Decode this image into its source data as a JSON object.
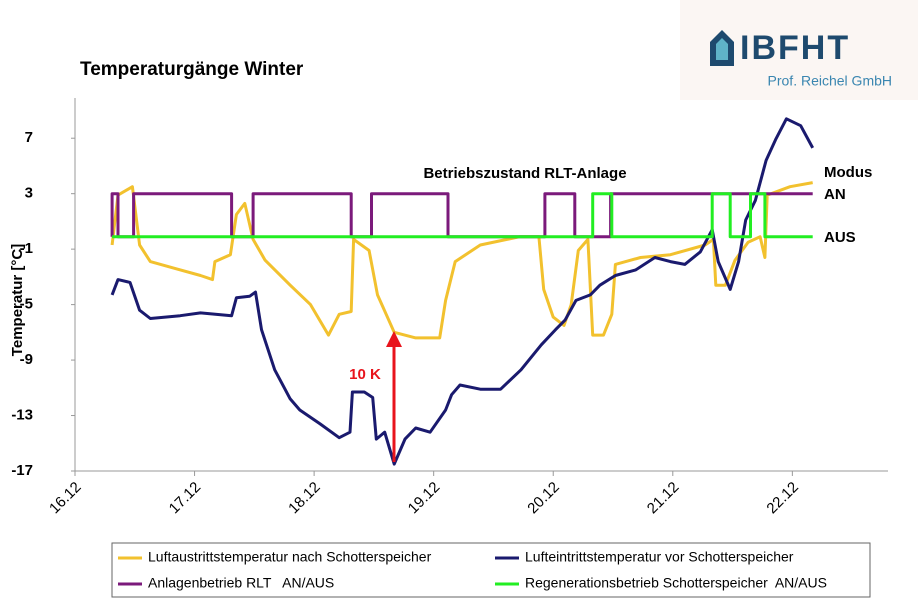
{
  "logo": {
    "name": "IBFHT",
    "subtitle": "Prof. Reichel GmbH"
  },
  "chart_data": {
    "type": "line",
    "title": "Temperaturgänge Winter",
    "y_label": "Temperatur [°C]",
    "annotations": [
      "Betriebszustand RLT-Anlage",
      "Modus",
      "AN",
      "AUS",
      "10 K"
    ],
    "xlim": [
      16,
      22.8
    ],
    "xticks": [
      {
        "value": 16,
        "label": "16.12"
      },
      {
        "value": 17,
        "label": "17.12"
      },
      {
        "value": 18,
        "label": "18.12"
      },
      {
        "value": 19,
        "label": "19.12"
      },
      {
        "value": 20,
        "label": "20.12"
      },
      {
        "value": 21,
        "label": "21.12"
      },
      {
        "value": 22,
        "label": "22.12"
      }
    ],
    "ylim": [
      -17,
      9.9
    ],
    "yticks": [
      -17,
      -13,
      -9,
      -5,
      -1,
      3,
      7
    ],
    "grid": false,
    "series": [
      {
        "name": "Luftaustrittstemperatur nach Schotterspeicher",
        "color": "#f2c12e",
        "x": [
          16.31,
          16.36,
          16.48,
          16.54,
          16.63,
          16.84,
          17.05,
          17.15,
          17.17,
          17.3,
          17.35,
          17.42,
          17.49,
          17.59,
          17.8,
          17.97,
          18.12,
          18.21,
          18.31,
          18.33,
          18.46,
          18.53,
          18.67,
          18.85,
          19.05,
          19.1,
          19.18,
          19.39,
          19.72,
          19.88,
          19.92,
          20.0,
          20.09,
          20.15,
          20.21,
          20.29,
          20.33,
          20.42,
          20.49,
          20.52,
          20.73,
          20.98,
          21.27,
          21.34,
          21.36,
          21.44,
          21.52,
          21.63,
          21.73,
          21.77,
          21.79,
          21.98,
          22.17
        ],
        "values": [
          -0.7,
          2.9,
          3.5,
          -0.7,
          -1.9,
          -2.4,
          -2.9,
          -3.2,
          -1.9,
          -1.4,
          1.5,
          2.3,
          -0.3,
          -1.8,
          -3.6,
          -5.0,
          -7.2,
          -5.7,
          -5.5,
          -0.3,
          -1.1,
          -4.3,
          -7.0,
          -7.4,
          -7.4,
          -4.7,
          -1.9,
          -0.7,
          -0.1,
          -0.1,
          -3.9,
          -5.9,
          -6.5,
          -5.0,
          -1.1,
          -0.3,
          -7.2,
          -7.2,
          -5.7,
          -2.1,
          -1.6,
          -1.4,
          -0.7,
          -0.3,
          -3.6,
          -3.6,
          -1.8,
          -0.5,
          -0.1,
          -1.6,
          2.9,
          3.5,
          3.8
        ]
      },
      {
        "name": "Lufteintrittstemperatur vor Schotterspeicher",
        "color": "#1a1a6e",
        "x": [
          16.31,
          16.36,
          16.46,
          16.54,
          16.63,
          16.88,
          17.05,
          17.31,
          17.35,
          17.46,
          17.51,
          17.56,
          17.67,
          17.8,
          17.88,
          18.05,
          18.21,
          18.3,
          18.32,
          18.42,
          18.49,
          18.52,
          18.59,
          18.67,
          18.76,
          18.85,
          18.97,
          19.1,
          19.15,
          19.22,
          19.39,
          19.56,
          19.73,
          19.9,
          20.02,
          20.1,
          20.19,
          20.31,
          20.39,
          20.52,
          20.69,
          20.85,
          20.98,
          21.1,
          21.23,
          21.33,
          21.38,
          21.48,
          21.55,
          21.61,
          21.69,
          21.78,
          21.86,
          21.95,
          22.07,
          22.17
        ],
        "values": [
          -4.3,
          -3.2,
          -3.4,
          -5.4,
          -6.0,
          -5.8,
          -5.6,
          -5.8,
          -4.5,
          -4.4,
          -4.1,
          -6.8,
          -9.7,
          -11.8,
          -12.6,
          -13.6,
          -14.6,
          -14.2,
          -11.3,
          -11.3,
          -11.7,
          -14.7,
          -14.2,
          -16.5,
          -14.7,
          -13.9,
          -14.2,
          -12.6,
          -11.5,
          -10.8,
          -11.1,
          -11.1,
          -9.7,
          -7.9,
          -6.8,
          -6.1,
          -4.7,
          -4.3,
          -3.6,
          -2.9,
          -2.5,
          -1.6,
          -1.9,
          -2.1,
          -1.2,
          0.4,
          -1.9,
          -3.9,
          -1.9,
          1.1,
          2.5,
          5.4,
          6.9,
          8.4,
          7.9,
          6.3
        ]
      },
      {
        "name": "Anlagenbetrieb RLT   AN/AUS",
        "color": "#7b1a7b",
        "x": [
          16.31,
          16.31,
          16.36,
          16.36,
          16.49,
          16.49,
          17.31,
          17.31,
          17.49,
          17.49,
          18.31,
          18.31,
          18.48,
          18.48,
          19.12,
          19.12,
          19.93,
          19.93,
          20.18,
          20.18,
          20.48,
          20.48,
          22.17
        ],
        "values": [
          -0.1,
          3,
          3,
          -0.1,
          -0.1,
          3,
          3,
          -0.1,
          -0.1,
          3,
          3,
          -0.1,
          -0.1,
          3,
          3,
          -0.1,
          -0.1,
          3,
          3,
          -0.1,
          -0.1,
          3,
          3
        ]
      },
      {
        "name": "Regenerationsbetrieb Schotterspeicher  AN/AUS",
        "color": "#22ee22",
        "x": [
          16.31,
          20.33,
          20.33,
          20.49,
          20.49,
          21.33,
          21.33,
          21.48,
          21.48,
          21.65,
          21.65,
          21.77,
          21.77,
          22.17
        ],
        "values": [
          -0.1,
          -0.1,
          3,
          3,
          -0.1,
          -0.1,
          3,
          3,
          -0.1,
          -0.1,
          3,
          3,
          -0.1,
          -0.1
        ]
      }
    ]
  }
}
